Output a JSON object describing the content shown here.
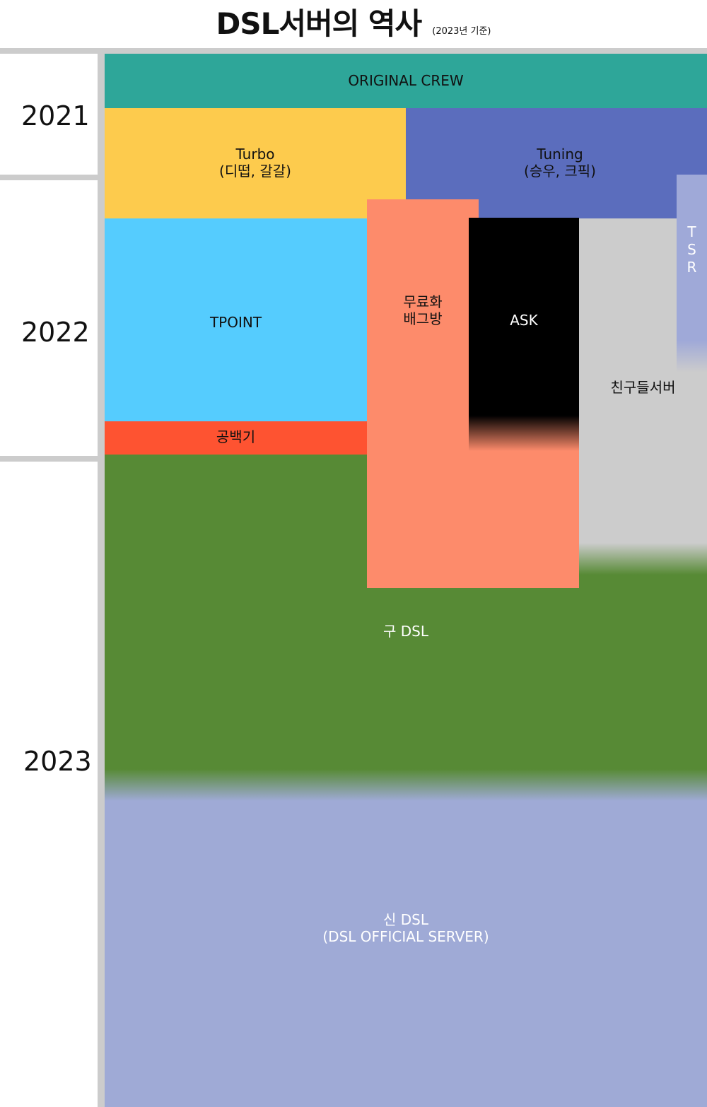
{
  "title": {
    "main": "DSL서버의 역사",
    "note": "(2023년 기준)"
  },
  "years": [
    "2021",
    "2022",
    "2023"
  ],
  "servers": {
    "original_crew": "ORIGINAL CREW",
    "turbo": "Turbo\n(디떱, 갈갈)",
    "tuning": "Tuning\n(승우, 크픽)",
    "tsr": "T\nS\nR",
    "tpoint": "TPOINT",
    "free_pubg": "무료화\n배그방",
    "ask": "ASK",
    "friends": "친구들서버",
    "gongbaekgi": "공백기",
    "old_dsl": "구 DSL",
    "new_dsl": "신 DSL\n(DSL OFFICIAL SERVER)"
  },
  "colors": {
    "original_crew": "#2ea699",
    "turbo": "#fdcb4d",
    "tuning": "#5b6dbd",
    "tsr": "#9fa9d8",
    "tpoint": "#55ccfe",
    "free_pubg": "#fd8b6b",
    "ask": "#000000",
    "friends": "#cccccc",
    "gongbaekgi": "#fe5331",
    "old_dsl": "#578a35",
    "new_dsl": "#9faad6"
  }
}
